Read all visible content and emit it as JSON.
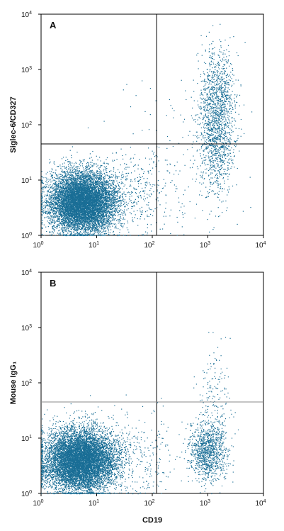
{
  "chart_data": [
    {
      "type": "scatter",
      "panel_label": "A",
      "xlabel": "",
      "ylabel": "Siglec-6/CD327",
      "xscale": "log",
      "yscale": "log",
      "xlim": [
        1,
        10000
      ],
      "ylim": [
        1,
        10000
      ],
      "x_ticks": [
        {
          "base": "10",
          "exp": "0"
        },
        {
          "base": "10",
          "exp": "1"
        },
        {
          "base": "10",
          "exp": "2"
        },
        {
          "base": "10",
          "exp": "3"
        },
        {
          "base": "10",
          "exp": "4"
        }
      ],
      "y_ticks": [
        {
          "base": "10",
          "exp": "0"
        },
        {
          "base": "10",
          "exp": "1"
        },
        {
          "base": "10",
          "exp": "2"
        },
        {
          "base": "10",
          "exp": "3"
        },
        {
          "base": "10",
          "exp": "4"
        }
      ],
      "gate_x": 120,
      "gate_y": 45,
      "point_color": "#1a6e96",
      "line_color": "#000000",
      "populations": [
        {
          "cx": 5.5,
          "cy": 4.0,
          "sx": 0.3,
          "sy": 0.28,
          "count": 9000
        },
        {
          "cx": 1400,
          "cy": 80,
          "sx": 0.17,
          "sy": 0.55,
          "count": 1300
        },
        {
          "cx": 1500,
          "cy": 600,
          "sx": 0.15,
          "sy": 0.35,
          "count": 400
        },
        {
          "cx": 60,
          "cy": 6,
          "sx": 0.35,
          "sy": 0.45,
          "count": 300
        },
        {
          "cx": 300,
          "cy": 30,
          "sx": 0.6,
          "sy": 0.6,
          "count": 120
        }
      ]
    },
    {
      "type": "scatter",
      "panel_label": "B",
      "xlabel": "CD19",
      "ylabel": "Mouse IgG₁",
      "xscale": "log",
      "yscale": "log",
      "xlim": [
        1,
        10000
      ],
      "ylim": [
        1,
        10000
      ],
      "x_ticks": [
        {
          "base": "10",
          "exp": "0"
        },
        {
          "base": "10",
          "exp": "1"
        },
        {
          "base": "10",
          "exp": "2"
        },
        {
          "base": "10",
          "exp": "3"
        },
        {
          "base": "10",
          "exp": "4"
        }
      ],
      "y_ticks": [
        {
          "base": "10",
          "exp": "0"
        },
        {
          "base": "10",
          "exp": "1"
        },
        {
          "base": "10",
          "exp": "2"
        },
        {
          "base": "10",
          "exp": "3"
        },
        {
          "base": "10",
          "exp": "4"
        }
      ],
      "gate_x": 120,
      "gate_y": 45,
      "point_color": "#1a6e96",
      "line_color": "#000000",
      "populations": [
        {
          "cx": 5.0,
          "cy": 4.0,
          "sx": 0.32,
          "sy": 0.28,
          "count": 9000
        },
        {
          "cx": 1000,
          "cy": 6,
          "sx": 0.17,
          "sy": 0.28,
          "count": 1100
        },
        {
          "cx": 1300,
          "cy": 60,
          "sx": 0.15,
          "sy": 0.45,
          "count": 150
        },
        {
          "cx": 60,
          "cy": 5,
          "sx": 0.35,
          "sy": 0.4,
          "count": 250
        }
      ]
    }
  ]
}
